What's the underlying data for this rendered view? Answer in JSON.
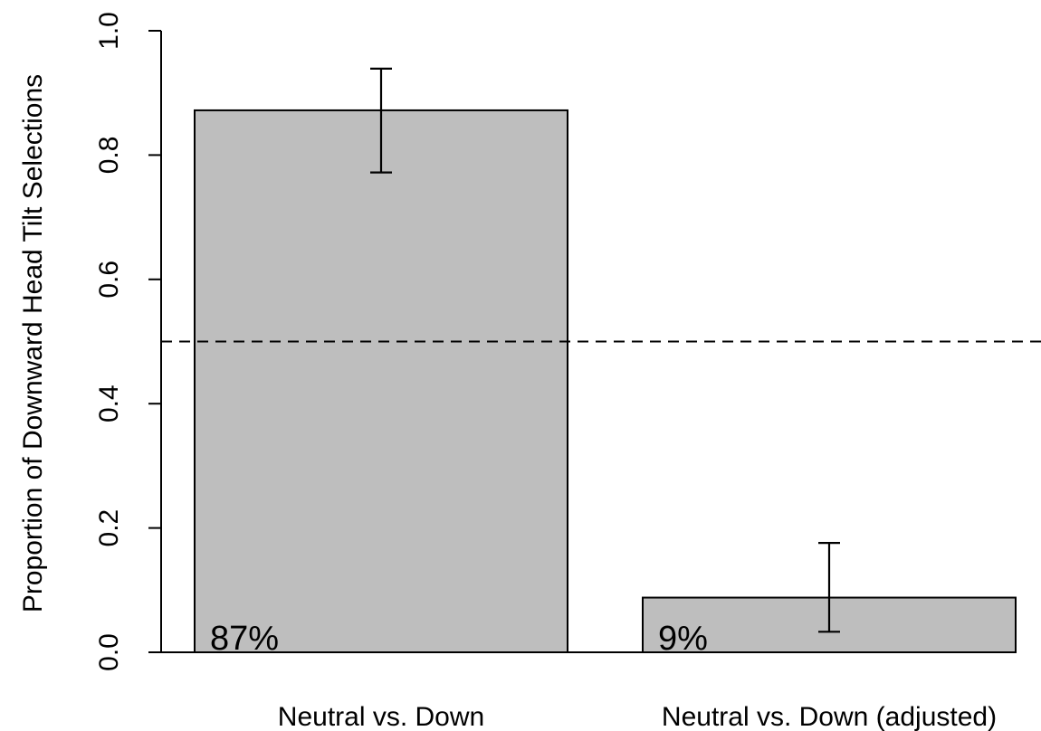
{
  "chart_data": {
    "type": "bar",
    "title": "",
    "xlabel": "",
    "ylabel": "Proportion of Downward Head Tilt Selections",
    "ylim": [
      0,
      1
    ],
    "yticks": [
      0.0,
      0.2,
      0.4,
      0.6,
      0.8,
      1.0
    ],
    "ytick_labels": [
      "0.0",
      "0.2",
      "0.4",
      "0.6",
      "0.8",
      "1.0"
    ],
    "categories": [
      "Neutral vs. Down",
      "Neutral vs. Down (adjusted)"
    ],
    "values": [
      0.872,
      0.088
    ],
    "bar_labels": [
      "87%",
      "9%"
    ],
    "error_bars": [
      {
        "lower": 0.772,
        "upper": 0.939
      },
      {
        "lower": 0.033,
        "upper": 0.176
      }
    ],
    "reference_line": {
      "y": 0.5,
      "style": "dashed"
    },
    "grid": false,
    "legend": "none",
    "colors": {
      "bar_fill": "#bebebe",
      "bar_edge": "#000000",
      "axis": "#000000"
    }
  }
}
